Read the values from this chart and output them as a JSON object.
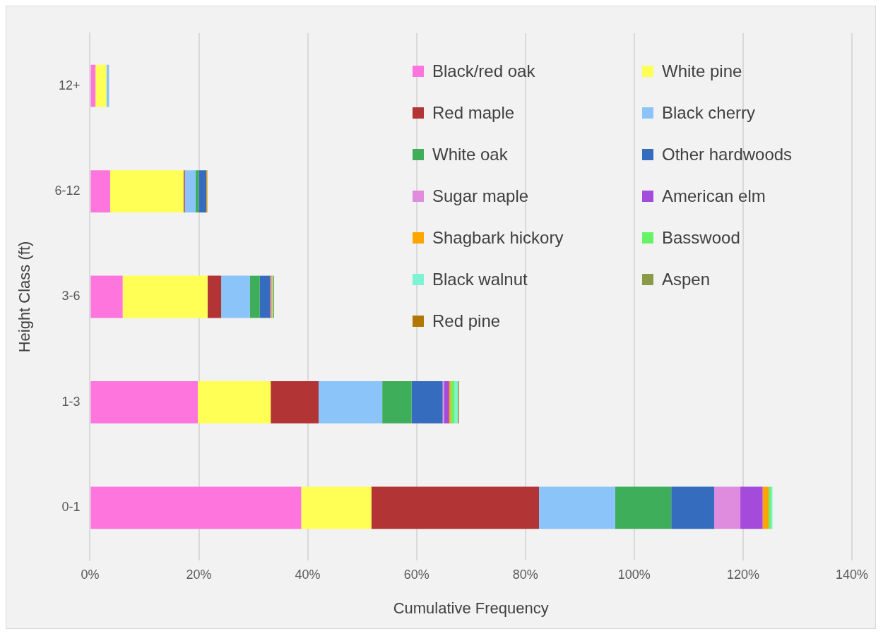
{
  "chart_data": {
    "type": "bar",
    "orientation": "horizontal",
    "stacked": true,
    "xlabel": "Cumulative Frequency",
    "ylabel": "Height Class (ft)",
    "categories": [
      "12+",
      "6-12",
      "3-6",
      "1-3",
      "0-1"
    ],
    "series": [
      {
        "name": "Black/red oak",
        "color": "#ff75de",
        "values": [
          1.0,
          3.7,
          6.0,
          19.8,
          38.8
        ]
      },
      {
        "name": "White pine",
        "color": "#ffff55",
        "values": [
          2.0,
          13.5,
          15.6,
          13.4,
          12.9
        ]
      },
      {
        "name": "Red maple",
        "color": "#b33434",
        "values": [
          0,
          0.2,
          2.5,
          8.8,
          30.8
        ]
      },
      {
        "name": "Black cherry",
        "color": "#8ac4f8",
        "values": [
          0.5,
          2.0,
          5.3,
          11.7,
          14.0
        ]
      },
      {
        "name": "White oak",
        "color": "#3fae5a",
        "values": [
          0,
          0.6,
          1.8,
          5.4,
          10.3
        ]
      },
      {
        "name": "Other hardwoods",
        "color": "#366cbd",
        "values": [
          0,
          1.4,
          1.9,
          5.7,
          7.9
        ]
      },
      {
        "name": "Sugar maple",
        "color": "#df8cdf",
        "values": [
          0,
          0,
          0.1,
          0.3,
          4.8
        ]
      },
      {
        "name": "American elm",
        "color": "#a54bdb",
        "values": [
          0,
          0,
          0.1,
          0.9,
          4.1
        ]
      },
      {
        "name": "Shagbark hickory",
        "color": "#ffa500",
        "values": [
          0,
          0.2,
          0.1,
          0.3,
          1.1
        ]
      },
      {
        "name": "Basswood",
        "color": "#66f466",
        "values": [
          0,
          0,
          0.1,
          0.7,
          0.4
        ]
      },
      {
        "name": "Black walnut",
        "color": "#7cf3d2",
        "values": [
          0,
          0,
          0.1,
          0.6,
          0.3
        ]
      },
      {
        "name": "Aspen",
        "color": "#8a9a47",
        "values": [
          0,
          0,
          0.1,
          0.1,
          0
        ]
      },
      {
        "name": "Red pine",
        "color": "#b07800",
        "values": [
          0,
          0,
          0.1,
          0.1,
          0
        ]
      }
    ],
    "xlim": [
      0,
      140
    ],
    "xticks": [
      {
        "value": 0,
        "label": "0%"
      },
      {
        "value": 20,
        "label": "20%"
      },
      {
        "value": 40,
        "label": "40%"
      },
      {
        "value": 60,
        "label": "60%"
      },
      {
        "value": 80,
        "label": "80%"
      },
      {
        "value": 100,
        "label": "100%"
      },
      {
        "value": 120,
        "label": "120%"
      },
      {
        "value": 140,
        "label": "140%"
      }
    ],
    "grid": "x",
    "legend": "top right"
  }
}
